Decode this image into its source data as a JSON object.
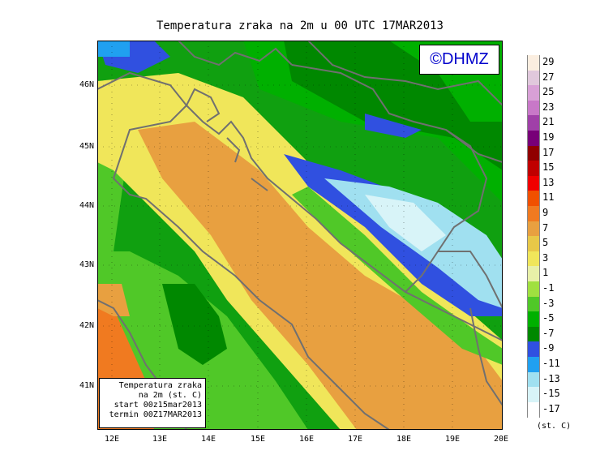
{
  "title": "Temperatura zraka na 2m u 00 UTC 17MAR2013",
  "logo": "©DHMZ",
  "info_box": [
    "Temperatura zraka",
    "na 2m (st. C)",
    "start 00z15mar2013",
    "termin 00Z17MAR2013"
  ],
  "lat_labels": [
    "46N",
    "45N",
    "44N",
    "43N",
    "42N",
    "41N"
  ],
  "lon_labels": [
    "12E",
    "13E",
    "14E",
    "15E",
    "16E",
    "17E",
    "18E",
    "19E",
    "20E"
  ],
  "legend": {
    "units": "(st. C)",
    "labels": [
      "29",
      "27",
      "25",
      "23",
      "21",
      "19",
      "17",
      "15",
      "13",
      "11",
      "9",
      "7",
      "5",
      "3",
      "1",
      "-1",
      "-3",
      "-5",
      "-7",
      "-9",
      "-11",
      "-13",
      "-15",
      "-17"
    ],
    "colors": [
      "#fbeee0",
      "#e0c8dc",
      "#d8a0d6",
      "#c878c8",
      "#a040a8",
      "#780078",
      "#900000",
      "#c00000",
      "#f00000",
      "#f05000",
      "#f07a20",
      "#e8a040",
      "#e8c848",
      "#f0e65a",
      "#e8f0a8",
      "#a0e040",
      "#50c828",
      "#00b000",
      "#008800",
      "#3050e0",
      "#20a0f0",
      "#a0e0f0",
      "#d8f4f8",
      "#ffffff"
    ]
  },
  "colors": {
    "coast": "#707070",
    "warm": "#e8a030",
    "yellow": "#f0e060",
    "green": "#10a010",
    "blue": "#3050e0",
    "light": "#c0e8f0"
  }
}
